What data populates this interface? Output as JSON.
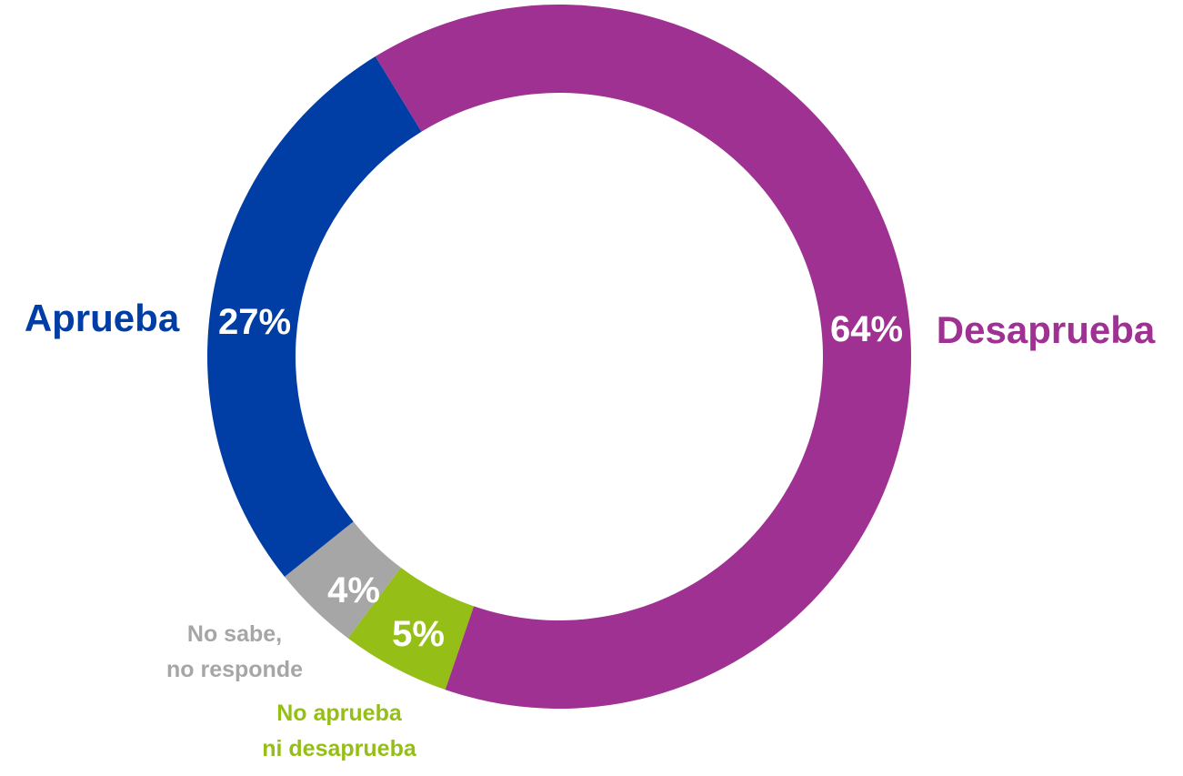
{
  "chart_data": {
    "type": "pie",
    "variant": "donut",
    "title": "",
    "slices": [
      {
        "label": "Desaprueba",
        "label_lines": [
          "Desaprueba"
        ],
        "value": 64,
        "value_label": "64%",
        "color": "#9E3191",
        "label_color": "#9E3191"
      },
      {
        "label": "No aprueba ni desaprueba",
        "label_lines": [
          "No aprueba",
          "ni desaprueba"
        ],
        "value": 5,
        "value_label": "5%",
        "color": "#95BE17",
        "label_color": "#95BE17"
      },
      {
        "label": "No sabe, no responde",
        "label_lines": [
          "No sabe,",
          "no responde"
        ],
        "value": 4,
        "value_label": "4%",
        "color": "#A6A6A6",
        "label_color": "#A6A6A6"
      },
      {
        "label": "Aprueba",
        "label_lines": [
          "Aprueba"
        ],
        "value": 27,
        "value_label": "27%",
        "color": "#003DA5",
        "label_color": "#003DA5"
      }
    ],
    "slice_order": "clockwise",
    "legend": "none"
  }
}
